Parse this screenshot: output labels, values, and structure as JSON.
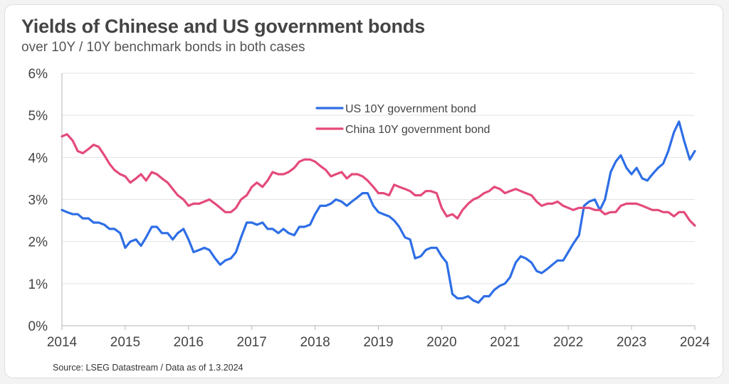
{
  "chart_data": {
    "type": "line",
    "title": "Yields of Chinese and US government bonds",
    "subtitle": "over 10Y / 10Y benchmark bonds in both cases",
    "source": "Source: LSEG Datastream /  Data as of 1.3.2024",
    "xlabel": "",
    "ylabel": "",
    "xlim": [
      2014,
      2024
    ],
    "ylim": [
      0,
      6
    ],
    "x_ticks": [
      2014,
      2015,
      2016,
      2017,
      2018,
      2019,
      2020,
      2021,
      2022,
      2023,
      2024
    ],
    "x_tick_labels": [
      "2014",
      "2015",
      "2016",
      "2017",
      "2018",
      "2019",
      "2020",
      "2021",
      "2022",
      "2023",
      "2024"
    ],
    "y_ticks": [
      0,
      1,
      2,
      3,
      4,
      5,
      6
    ],
    "y_tick_labels": [
      "0%",
      "1%",
      "2%",
      "3%",
      "4%",
      "5%",
      "6%"
    ],
    "grid": "horizontal",
    "legend_position": "top-center",
    "series": [
      {
        "name": "US 10Y government bond",
        "color": "#2e6ee6",
        "x": [
          2014.0,
          2014.08,
          2014.17,
          2014.25,
          2014.33,
          2014.42,
          2014.5,
          2014.58,
          2014.67,
          2014.75,
          2014.83,
          2014.92,
          2015.0,
          2015.08,
          2015.17,
          2015.25,
          2015.33,
          2015.42,
          2015.5,
          2015.58,
          2015.67,
          2015.75,
          2015.83,
          2015.92,
          2016.0,
          2016.08,
          2016.17,
          2016.25,
          2016.33,
          2016.42,
          2016.5,
          2016.58,
          2016.67,
          2016.75,
          2016.83,
          2016.92,
          2017.0,
          2017.08,
          2017.17,
          2017.25,
          2017.33,
          2017.42,
          2017.5,
          2017.58,
          2017.67,
          2017.75,
          2017.83,
          2017.92,
          2018.0,
          2018.08,
          2018.17,
          2018.25,
          2018.33,
          2018.42,
          2018.5,
          2018.58,
          2018.67,
          2018.75,
          2018.83,
          2018.92,
          2019.0,
          2019.08,
          2019.17,
          2019.25,
          2019.33,
          2019.42,
          2019.5,
          2019.58,
          2019.67,
          2019.75,
          2019.83,
          2019.92,
          2020.0,
          2020.08,
          2020.17,
          2020.25,
          2020.33,
          2020.42,
          2020.5,
          2020.58,
          2020.67,
          2020.75,
          2020.83,
          2020.92,
          2021.0,
          2021.08,
          2021.17,
          2021.25,
          2021.33,
          2021.42,
          2021.5,
          2021.58,
          2021.67,
          2021.75,
          2021.83,
          2021.92,
          2022.0,
          2022.08,
          2022.17,
          2022.25,
          2022.33,
          2022.42,
          2022.5,
          2022.58,
          2022.67,
          2022.75,
          2022.83,
          2022.92,
          2023.0,
          2023.08,
          2023.17,
          2023.25,
          2023.33,
          2023.42,
          2023.5,
          2023.58,
          2023.67,
          2023.75,
          2023.83,
          2023.92,
          2024.0
        ],
        "values": [
          2.75,
          2.7,
          2.65,
          2.65,
          2.55,
          2.55,
          2.45,
          2.45,
          2.4,
          2.3,
          2.3,
          2.2,
          1.85,
          2.0,
          2.05,
          1.9,
          2.1,
          2.35,
          2.35,
          2.2,
          2.2,
          2.05,
          2.2,
          2.3,
          2.05,
          1.75,
          1.8,
          1.85,
          1.8,
          1.6,
          1.45,
          1.55,
          1.6,
          1.75,
          2.1,
          2.45,
          2.45,
          2.4,
          2.45,
          2.3,
          2.3,
          2.2,
          2.3,
          2.2,
          2.15,
          2.35,
          2.35,
          2.4,
          2.65,
          2.85,
          2.85,
          2.9,
          3.0,
          2.95,
          2.85,
          2.95,
          3.05,
          3.15,
          3.15,
          2.85,
          2.7,
          2.65,
          2.6,
          2.5,
          2.35,
          2.1,
          2.05,
          1.6,
          1.65,
          1.8,
          1.85,
          1.85,
          1.65,
          1.5,
          0.75,
          0.65,
          0.65,
          0.7,
          0.6,
          0.55,
          0.7,
          0.7,
          0.85,
          0.95,
          1.0,
          1.15,
          1.5,
          1.65,
          1.6,
          1.5,
          1.3,
          1.25,
          1.35,
          1.45,
          1.55,
          1.55,
          1.75,
          1.95,
          2.15,
          2.85,
          2.95,
          3.0,
          2.75,
          3.0,
          3.65,
          3.9,
          4.05,
          3.75,
          3.6,
          3.75,
          3.5,
          3.45,
          3.6,
          3.75,
          3.85,
          4.15,
          4.6,
          4.85,
          4.4,
          3.95,
          4.15
        ]
      },
      {
        "name": "China 10Y government bond",
        "color": "#e44a7a",
        "x": [
          2014.0,
          2014.08,
          2014.17,
          2014.25,
          2014.33,
          2014.42,
          2014.5,
          2014.58,
          2014.67,
          2014.75,
          2014.83,
          2014.92,
          2015.0,
          2015.08,
          2015.17,
          2015.25,
          2015.33,
          2015.42,
          2015.5,
          2015.58,
          2015.67,
          2015.75,
          2015.83,
          2015.92,
          2016.0,
          2016.08,
          2016.17,
          2016.25,
          2016.33,
          2016.42,
          2016.5,
          2016.58,
          2016.67,
          2016.75,
          2016.83,
          2016.92,
          2017.0,
          2017.08,
          2017.17,
          2017.25,
          2017.33,
          2017.42,
          2017.5,
          2017.58,
          2017.67,
          2017.75,
          2017.83,
          2017.92,
          2018.0,
          2018.08,
          2018.17,
          2018.25,
          2018.33,
          2018.42,
          2018.5,
          2018.58,
          2018.67,
          2018.75,
          2018.83,
          2018.92,
          2019.0,
          2019.08,
          2019.17,
          2019.25,
          2019.33,
          2019.42,
          2019.5,
          2019.58,
          2019.67,
          2019.75,
          2019.83,
          2019.92,
          2020.0,
          2020.08,
          2020.17,
          2020.25,
          2020.33,
          2020.42,
          2020.5,
          2020.58,
          2020.67,
          2020.75,
          2020.83,
          2020.92,
          2021.0,
          2021.08,
          2021.17,
          2021.25,
          2021.33,
          2021.42,
          2021.5,
          2021.58,
          2021.67,
          2021.75,
          2021.83,
          2021.92,
          2022.0,
          2022.08,
          2022.17,
          2022.25,
          2022.33,
          2022.42,
          2022.5,
          2022.58,
          2022.67,
          2022.75,
          2022.83,
          2022.92,
          2023.0,
          2023.08,
          2023.17,
          2023.25,
          2023.33,
          2023.42,
          2023.5,
          2023.58,
          2023.67,
          2023.75,
          2023.83,
          2023.92,
          2024.0
        ],
        "values": [
          4.5,
          4.55,
          4.4,
          4.15,
          4.1,
          4.2,
          4.3,
          4.25,
          4.05,
          3.85,
          3.7,
          3.6,
          3.55,
          3.4,
          3.5,
          3.6,
          3.45,
          3.65,
          3.6,
          3.5,
          3.4,
          3.25,
          3.1,
          3.0,
          2.85,
          2.9,
          2.9,
          2.95,
          3.0,
          2.9,
          2.8,
          2.7,
          2.7,
          2.8,
          3.0,
          3.1,
          3.3,
          3.4,
          3.3,
          3.45,
          3.65,
          3.6,
          3.6,
          3.65,
          3.75,
          3.9,
          3.95,
          3.95,
          3.9,
          3.8,
          3.7,
          3.55,
          3.6,
          3.65,
          3.5,
          3.6,
          3.6,
          3.55,
          3.45,
          3.3,
          3.15,
          3.15,
          3.1,
          3.35,
          3.3,
          3.25,
          3.2,
          3.1,
          3.1,
          3.2,
          3.2,
          3.15,
          2.8,
          2.6,
          2.65,
          2.55,
          2.75,
          2.9,
          3.0,
          3.05,
          3.15,
          3.2,
          3.3,
          3.25,
          3.15,
          3.2,
          3.25,
          3.2,
          3.15,
          3.1,
          2.95,
          2.85,
          2.9,
          2.9,
          2.95,
          2.85,
          2.8,
          2.75,
          2.8,
          2.8,
          2.8,
          2.75,
          2.75,
          2.65,
          2.7,
          2.7,
          2.85,
          2.9,
          2.9,
          2.9,
          2.85,
          2.8,
          2.75,
          2.75,
          2.7,
          2.7,
          2.6,
          2.7,
          2.7,
          2.5,
          2.38
        ]
      }
    ]
  }
}
